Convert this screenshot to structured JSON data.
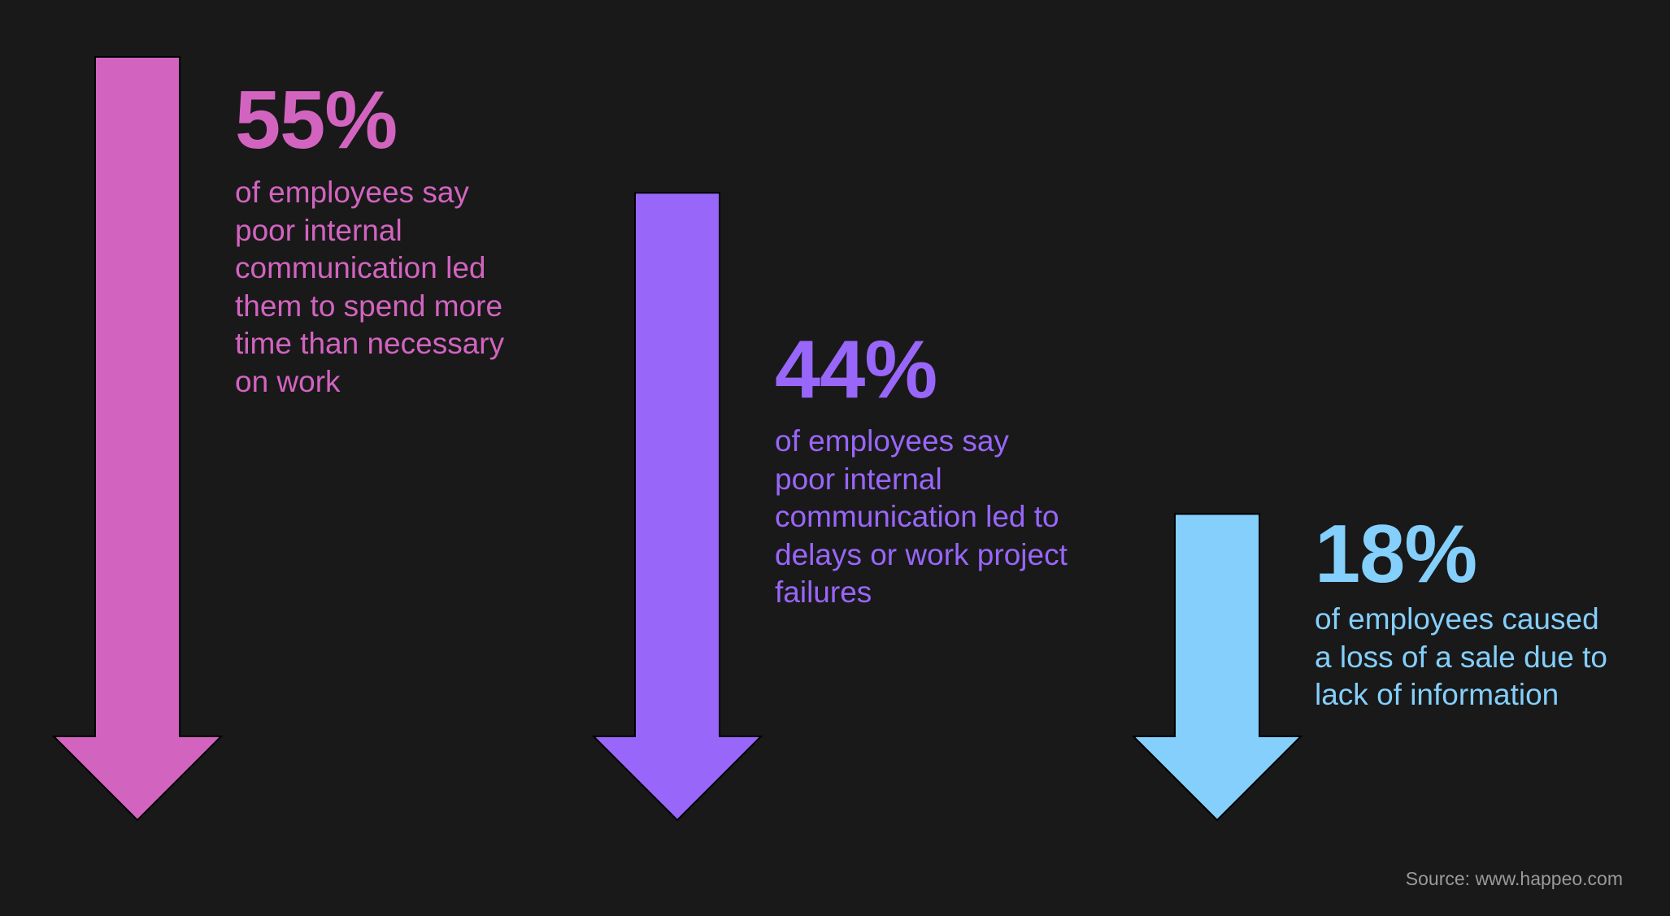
{
  "chart_data": {
    "type": "bar",
    "orientation": "downward-arrows",
    "unit": "%",
    "ylim": [
      0,
      55
    ],
    "series": [
      {
        "value": 55,
        "label": "55%",
        "description": "of employees say poor internal communication led them to spend more time than necessary on work",
        "lines": [
          "of employees say",
          "poor internal",
          "communication led",
          "them to spend more",
          "time than necessary",
          "on work"
        ],
        "color": "#d264c0"
      },
      {
        "value": 44,
        "label": "44%",
        "description": "of employees say poor internal communication led to delays or work project failures",
        "lines": [
          "of employees say",
          "poor internal",
          "communication led to",
          "delays or work project",
          "failures"
        ],
        "color": "#9966fa"
      },
      {
        "value": 18,
        "label": "18%",
        "description": "of employees caused a loss of a sale due to lack of information",
        "lines": [
          "of employees caused",
          "a loss of a sale due to",
          "lack of information"
        ],
        "color": "#84cffc"
      }
    ]
  },
  "source": "Source: www.happeo.com"
}
